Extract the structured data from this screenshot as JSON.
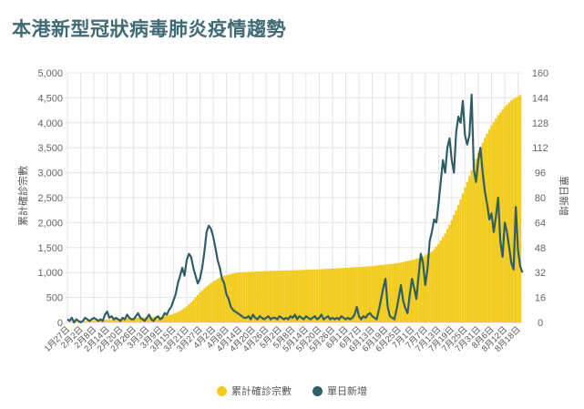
{
  "title": "本港新型冠狀病毒肺炎疫情趨勢",
  "colors": {
    "title": "#3e6b75",
    "cumulative": "#f2cb1d",
    "daily": "#2f5f66",
    "grid": "#e5e5e5"
  },
  "chart_data": {
    "type": "bar",
    "ylabel_left": "累計確診宗數",
    "ylabel_right": "單日新增",
    "ylim_left": [
      0,
      5000
    ],
    "ylim_right": [
      0,
      160
    ],
    "yticks_left": [
      "0",
      "500",
      "1,000",
      "1,500",
      "2,000",
      "2,500",
      "3,000",
      "3,500",
      "4,000",
      "4,500",
      "5,000"
    ],
    "yticks_right": [
      "0",
      "16",
      "32",
      "48",
      "64",
      "80",
      "96",
      "112",
      "128",
      "144",
      "160"
    ],
    "x_tick_labels": [
      "1月27日",
      "2月2日",
      "2月8日",
      "2月14日",
      "2月20日",
      "2月26日",
      "3月3日",
      "3月9日",
      "3月15日",
      "3月21日",
      "3月27日",
      "4月2日",
      "4月8日",
      "4月14日",
      "4月20日",
      "4月26日",
      "5月2日",
      "5月8日",
      "5月14日",
      "5月20日",
      "5月26日",
      "6月1日",
      "6月7日",
      "6月13日",
      "6月19日",
      "6月25日",
      "7月1日",
      "7月7日",
      "7月13日",
      "7月19日",
      "7月25日",
      "7月31日",
      "8月6日",
      "8月12日",
      "8月18日"
    ],
    "x_tick_day_index": [
      0,
      6,
      12,
      18,
      24,
      30,
      36,
      42,
      48,
      54,
      60,
      66,
      72,
      78,
      84,
      90,
      96,
      102,
      108,
      114,
      120,
      126,
      132,
      138,
      144,
      150,
      156,
      162,
      168,
      174,
      180,
      186,
      192,
      198,
      204
    ],
    "grid": true,
    "legend_position": "bottom",
    "series": [
      {
        "name": "累計確診宗數",
        "type": "bar",
        "axis": "left",
        "points": [
          [
            0,
            8
          ],
          [
            10,
            36
          ],
          [
            20,
            62
          ],
          [
            30,
            95
          ],
          [
            36,
            105
          ],
          [
            42,
            120
          ],
          [
            45,
            140
          ],
          [
            48,
            170
          ],
          [
            51,
            230
          ],
          [
            54,
            320
          ],
          [
            57,
            450
          ],
          [
            60,
            600
          ],
          [
            63,
            720
          ],
          [
            66,
            820
          ],
          [
            69,
            900
          ],
          [
            72,
            950
          ],
          [
            75,
            980
          ],
          [
            78,
            1005
          ],
          [
            90,
            1030
          ],
          [
            102,
            1045
          ],
          [
            114,
            1065
          ],
          [
            126,
            1095
          ],
          [
            138,
            1130
          ],
          [
            150,
            1190
          ],
          [
            156,
            1250
          ],
          [
            160,
            1300
          ],
          [
            162,
            1340
          ],
          [
            165,
            1420
          ],
          [
            168,
            1570
          ],
          [
            171,
            1780
          ],
          [
            174,
            2050
          ],
          [
            177,
            2350
          ],
          [
            180,
            2700
          ],
          [
            183,
            3050
          ],
          [
            186,
            3400
          ],
          [
            189,
            3700
          ],
          [
            192,
            3950
          ],
          [
            195,
            4150
          ],
          [
            198,
            4320
          ],
          [
            201,
            4450
          ],
          [
            205,
            4560
          ]
        ]
      },
      {
        "name": "單日新增",
        "type": "line",
        "axis": "right",
        "values": [
          2,
          1,
          3,
          0,
          2,
          1,
          0,
          1,
          3,
          2,
          1,
          2,
          3,
          2,
          1,
          2,
          1,
          5,
          7,
          3,
          4,
          2,
          3,
          2,
          1,
          3,
          2,
          5,
          3,
          2,
          2,
          4,
          6,
          3,
          2,
          1,
          3,
          5,
          2,
          1,
          3,
          4,
          2,
          3,
          6,
          5,
          8,
          10,
          14,
          18,
          25,
          30,
          35,
          30,
          40,
          44,
          42,
          35,
          30,
          25,
          28,
          35,
          45,
          58,
          62,
          60,
          55,
          48,
          40,
          35,
          28,
          25,
          18,
          15,
          10,
          8,
          7,
          6,
          5,
          4,
          3,
          3,
          4,
          2,
          5,
          3,
          2,
          4,
          3,
          2,
          3,
          4,
          2,
          3,
          3,
          2,
          4,
          3,
          2,
          3,
          2,
          4,
          3,
          5,
          2,
          4,
          3,
          2,
          4,
          3,
          2,
          3,
          4,
          2,
          3,
          5,
          2,
          3,
          4,
          2,
          3,
          2,
          3,
          2,
          4,
          3,
          2,
          3,
          2,
          3,
          5,
          10,
          4,
          2,
          4,
          3,
          5,
          6,
          4,
          3,
          2,
          8,
          15,
          22,
          28,
          10,
          4,
          3,
          2,
          8,
          16,
          24,
          14,
          9,
          6,
          18,
          28,
          22,
          15,
          30,
          44,
          38,
          24,
          34,
          52,
          58,
          66,
          64,
          76,
          90,
          104,
          96,
          112,
          118,
          104,
          96,
          122,
          132,
          128,
          142,
          120,
          114,
          120,
          146,
          98,
          90,
          104,
          112,
          96,
          84,
          76,
          66,
          70,
          58,
          68,
          80,
          52,
          42,
          64,
          58,
          48,
          38,
          34,
          74,
          46,
          36,
          32
        ]
      }
    ]
  }
}
